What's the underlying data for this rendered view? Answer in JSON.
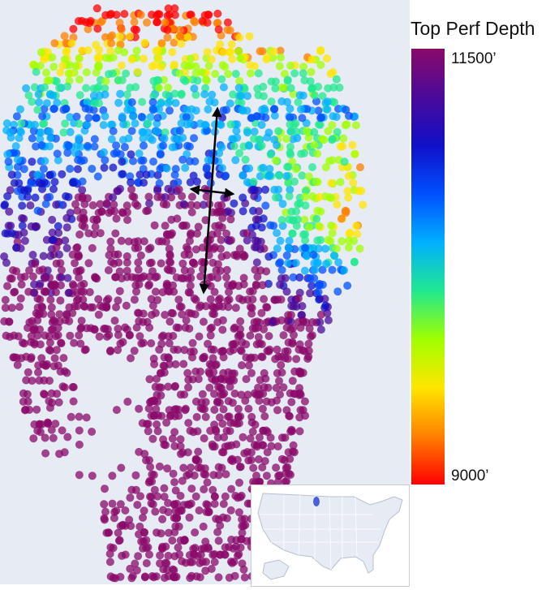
{
  "legend": {
    "title": "Top Perf Depth",
    "max_label": "11500’",
    "min_label": "9000’",
    "range": [
      9000,
      11500
    ],
    "colors": [
      "#ff0000",
      "#ff8000",
      "#ffe600",
      "#a0ff00",
      "#20e890",
      "#00b0ff",
      "#0050ff",
      "#1010c8",
      "#4a0a9a",
      "#8a0a6a"
    ]
  },
  "map": {
    "background": "#e6ebf4",
    "point_style": "semi-transparent circles colored by top perforation depth",
    "arrows": "black double-headed arrows, roughly north-south and east-west"
  },
  "inset": {
    "description": "locator map of the United States with highlighted area",
    "highlight_color": "#4a5fd8"
  }
}
